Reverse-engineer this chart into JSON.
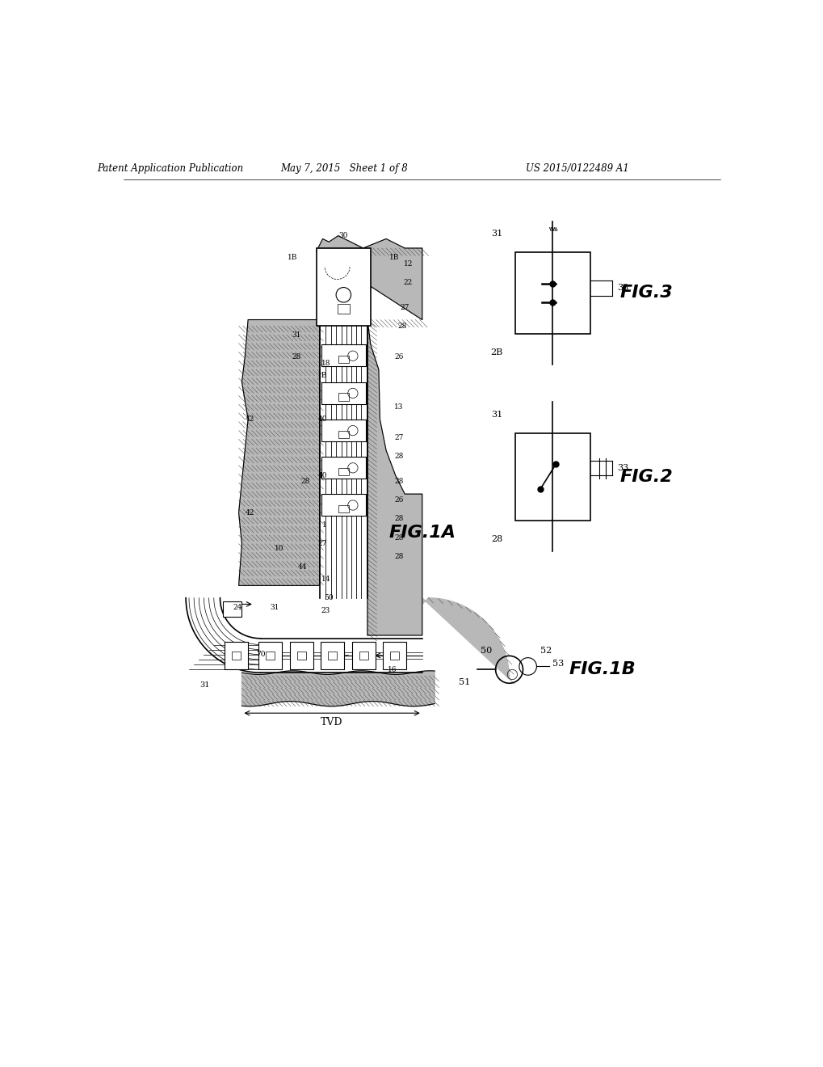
{
  "header_left": "Patent Application Publication",
  "header_mid": "May 7, 2015   Sheet 1 of 8",
  "header_right": "US 2015/0122489 A1",
  "fig1a_label": "FIG.1A",
  "fig1b_label": "FIG.1B",
  "fig2_label": "FIG.2",
  "fig3_label": "FIG.3",
  "bg_color": "#ffffff",
  "line_color": "#000000",
  "fill_formation": "#aaaaaa",
  "fill_formation_light": "#cccccc"
}
